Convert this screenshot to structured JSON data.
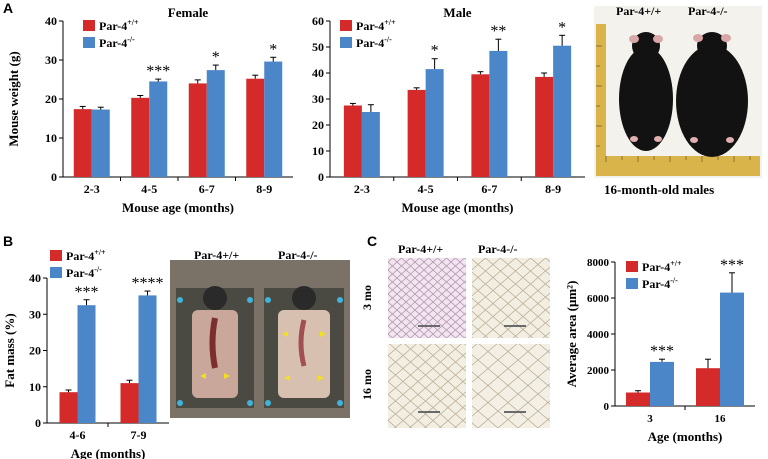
{
  "panel_labels": {
    "a": "A",
    "b": "B",
    "c": "C"
  },
  "colors": {
    "wt": "#d42a2a",
    "ko": "#4a86c8"
  },
  "legend": {
    "wt_base": "Par-4",
    "wt_sup": "+/+",
    "ko_base": "Par-4",
    "ko_sup": "-/-"
  },
  "chart_data": [
    {
      "id": "female",
      "type": "bar",
      "title": "Female",
      "xlabel": "Mouse age (months)",
      "ylabel": "Mouse weight (g)",
      "categories": [
        "2-3",
        "4-5",
        "6-7",
        "8-9"
      ],
      "ylim": [
        0,
        40
      ],
      "yticks": [
        0,
        10,
        20,
        30,
        40
      ],
      "series": [
        {
          "name": "Par-4+/+",
          "values": [
            17.4,
            20.3,
            24.0,
            25.2
          ],
          "errors": [
            0.7,
            0.6,
            0.9,
            0.9
          ]
        },
        {
          "name": "Par-4-/-",
          "values": [
            17.3,
            24.5,
            27.4,
            29.6
          ],
          "errors": [
            0.6,
            0.6,
            1.3,
            1.1
          ]
        }
      ],
      "annotations": [
        "",
        "***",
        "*",
        "*"
      ]
    },
    {
      "id": "male",
      "type": "bar",
      "title": "Male",
      "xlabel": "Mouse age (months)",
      "ylabel": "",
      "categories": [
        "2-3",
        "4-5",
        "6-7",
        "8-9"
      ],
      "ylim": [
        0,
        60
      ],
      "yticks": [
        0,
        10,
        20,
        30,
        40,
        50,
        60
      ],
      "series": [
        {
          "name": "Par-4+/+",
          "values": [
            27.5,
            33.5,
            39.5,
            38.5
          ],
          "errors": [
            0.8,
            0.8,
            1.0,
            1.5
          ]
        },
        {
          "name": "Par-4-/-",
          "values": [
            25.0,
            41.5,
            48.5,
            50.5
          ],
          "errors": [
            2.8,
            4.0,
            4.5,
            4.0
          ]
        }
      ],
      "annotations": [
        "",
        "*",
        "**",
        "*"
      ]
    },
    {
      "id": "fatmass",
      "type": "bar",
      "title": "",
      "xlabel": "Age (months)",
      "ylabel": "Fat mass (%)",
      "categories": [
        "4-6",
        "7-9"
      ],
      "ylim": [
        0,
        40
      ],
      "yticks": [
        0,
        10,
        20,
        30,
        40
      ],
      "series": [
        {
          "name": "Par-4+/+",
          "values": [
            8.5,
            11.0
          ],
          "errors": [
            0.6,
            0.8
          ]
        },
        {
          "name": "Par-4-/-",
          "values": [
            32.5,
            35.2
          ],
          "errors": [
            1.5,
            1.2
          ]
        }
      ],
      "annotations": [
        "***",
        "****"
      ]
    },
    {
      "id": "area",
      "type": "bar",
      "title": "",
      "xlabel": "Age (months)",
      "ylabel": "Average area (μm²)",
      "categories": [
        "3",
        "16"
      ],
      "ylim": [
        0,
        8000
      ],
      "yticks": [
        0,
        2000,
        4000,
        6000,
        8000
      ],
      "series": [
        {
          "name": "Par-4+/+",
          "values": [
            750,
            2100
          ],
          "errors": [
            100,
            500
          ]
        },
        {
          "name": "Par-4-/-",
          "values": [
            2450,
            6300
          ],
          "errors": [
            150,
            1100
          ]
        }
      ],
      "annotations": [
        "***",
        "***"
      ]
    }
  ],
  "photo_a": {
    "label_wt": "Par-4+/+",
    "label_ko": "Par-4-/-",
    "caption": "16-month-old males"
  },
  "photo_b": {
    "label_wt": "Par-4+/+",
    "label_ko": "Par-4-/-"
  },
  "histology": {
    "label_wt": "Par-4+/+",
    "label_ko": "Par-4-/-",
    "row1": "3 mo",
    "row2": "16 mo"
  }
}
